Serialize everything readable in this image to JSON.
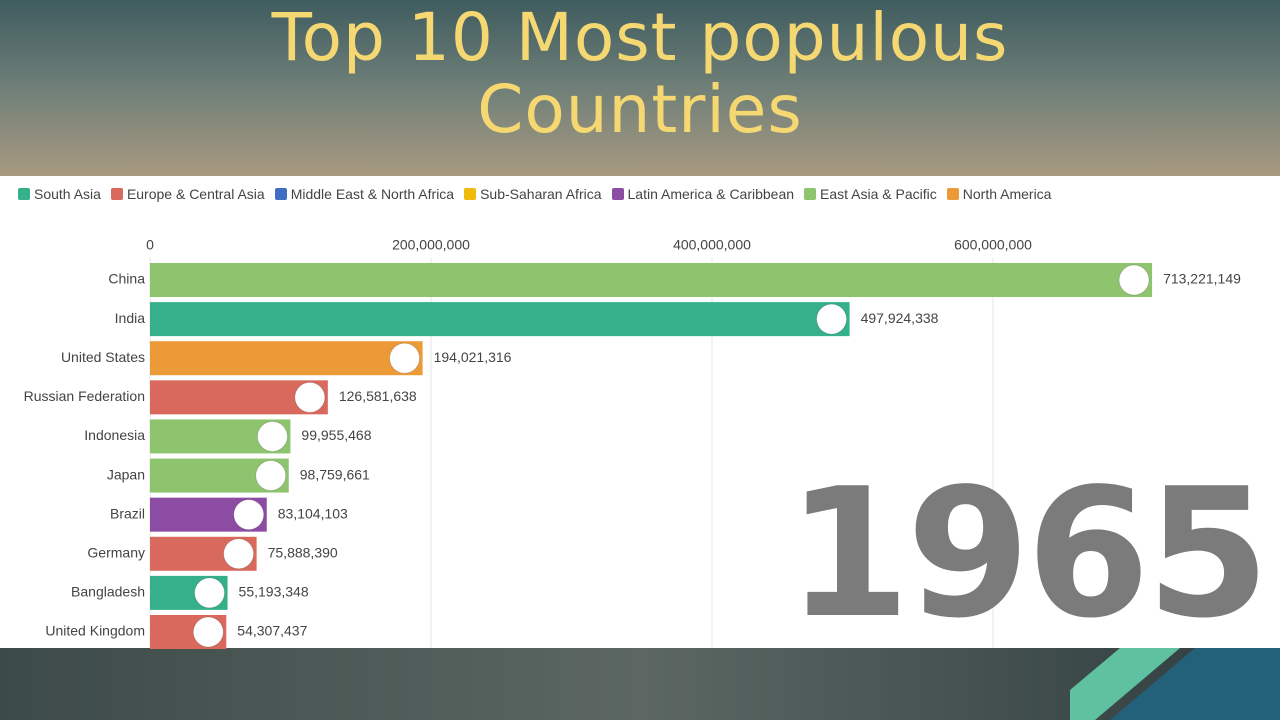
{
  "chart_data": {
    "type": "bar",
    "orientation": "horizontal",
    "title": "Top 10 Most populous Countries",
    "legend": [
      {
        "name": "South Asia",
        "color": "#35b08b"
      },
      {
        "name": "Europe & Central Asia",
        "color": "#d9695c"
      },
      {
        "name": "Middle East & North Africa",
        "color": "#3f6fc2"
      },
      {
        "name": "Sub-Saharan Africa",
        "color": "#efb90e"
      },
      {
        "name": "Latin America & Caribbean",
        "color": "#8d4ca3"
      },
      {
        "name": "East Asia & Pacific",
        "color": "#8fc46f"
      },
      {
        "name": "North America",
        "color": "#ec9a38"
      }
    ],
    "categories": [
      "China",
      "India",
      "United States",
      "Russian Federation",
      "Indonesia",
      "Japan",
      "Brazil",
      "Germany",
      "Bangladesh",
      "United Kingdom"
    ],
    "values": [
      713221149,
      497924338,
      194021316,
      126581638,
      99955468,
      98759661,
      83104103,
      75888390,
      55193348,
      54307437
    ],
    "value_labels": [
      "713,221,149",
      "497,924,338",
      "194,021,316",
      "126,581,638",
      "99,955,468",
      "98,759,661",
      "83,104,103",
      "75,888,390",
      "55,193,348",
      "54,307,437"
    ],
    "colors": [
      "#8fc46f",
      "#35b08b",
      "#ec9a38",
      "#d9695c",
      "#8fc46f",
      "#8fc46f",
      "#8d4ca3",
      "#d9695c",
      "#35b08b",
      "#d9695c"
    ],
    "xlim": [
      0,
      800000000
    ],
    "xticks": [
      0,
      {
        "value": 200000000,
        "label": "200,000,000"
      },
      {
        "value": 400000000,
        "label": "400,000,000"
      },
      {
        "value": 600000000,
        "label": "600,000,000"
      }
    ],
    "grid": true,
    "annotation": "1965"
  }
}
